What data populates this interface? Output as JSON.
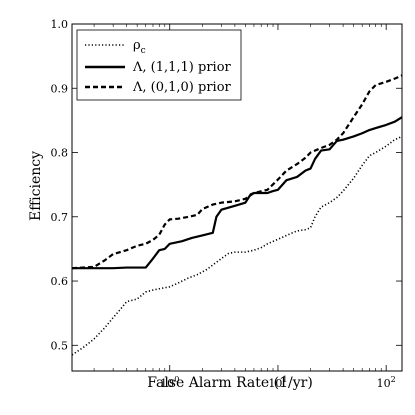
{
  "chart_data": {
    "type": "line",
    "xlabel": "False Alarm Rate (1/yr)",
    "ylabel": "Efficiency",
    "xscale": "log",
    "xlim": [
      0.125,
      140
    ],
    "ylim": [
      0.46,
      1.0
    ],
    "x_ticks": [
      {
        "value": 1,
        "base": "10",
        "exp": "0"
      },
      {
        "value": 10,
        "base": "10",
        "exp": "1"
      },
      {
        "value": 100,
        "base": "10",
        "exp": "2"
      }
    ],
    "y_ticks": [
      {
        "value": 0.5,
        "label": "0.5"
      },
      {
        "value": 0.6,
        "label": "0.6"
      },
      {
        "value": 0.7,
        "label": "0.7"
      },
      {
        "value": 0.8,
        "label": "0.8"
      },
      {
        "value": 0.9,
        "label": "0.9"
      },
      {
        "value": 1.0,
        "label": "1.0"
      }
    ],
    "grid": false,
    "legend_position": "top-left",
    "series": [
      {
        "name": "ρ",
        "name_sub": "c",
        "style": "dotted",
        "color": "#000000",
        "x": [
          0.125,
          0.16,
          0.2,
          0.25,
          0.3,
          0.35,
          0.4,
          0.5,
          0.6,
          0.7,
          0.8,
          1.0,
          1.2,
          1.5,
          1.8,
          2.2,
          2.5,
          3.0,
          3.5,
          4.0,
          5.0,
          6.0,
          7.0,
          8.0,
          10.0,
          12.0,
          15.0,
          18.0,
          20.0,
          22.0,
          25.0,
          30.0,
          35.0,
          40.0,
          50.0,
          60.0,
          70.0,
          80.0,
          100.0,
          120.0,
          140.0
        ],
        "y": [
          0.485,
          0.497,
          0.51,
          0.527,
          0.543,
          0.556,
          0.568,
          0.572,
          0.583,
          0.586,
          0.588,
          0.591,
          0.597,
          0.605,
          0.61,
          0.618,
          0.625,
          0.635,
          0.643,
          0.645,
          0.645,
          0.648,
          0.652,
          0.658,
          0.665,
          0.671,
          0.678,
          0.68,
          0.683,
          0.7,
          0.715,
          0.722,
          0.73,
          0.74,
          0.76,
          0.78,
          0.795,
          0.8,
          0.81,
          0.82,
          0.825
        ]
      },
      {
        "name": "Λ, (1,1,1) prior",
        "style": "solid",
        "color": "#000000",
        "x": [
          0.125,
          0.2,
          0.3,
          0.4,
          0.6,
          0.7,
          0.8,
          0.9,
          1.0,
          1.3,
          1.6,
          2.0,
          2.5,
          2.7,
          3.0,
          4.0,
          5.0,
          5.6,
          6.0,
          8.0,
          9.0,
          10.0,
          12.0,
          15.0,
          18.0,
          20.0,
          22.0,
          25.0,
          30.0,
          35.0,
          40.0,
          50.0,
          60.0,
          70.0,
          80.0,
          100.0,
          120.0,
          140.0
        ],
        "y": [
          0.62,
          0.62,
          0.62,
          0.621,
          0.621,
          0.635,
          0.648,
          0.65,
          0.658,
          0.662,
          0.667,
          0.671,
          0.675,
          0.7,
          0.711,
          0.717,
          0.722,
          0.735,
          0.737,
          0.737,
          0.74,
          0.742,
          0.757,
          0.762,
          0.772,
          0.775,
          0.79,
          0.803,
          0.805,
          0.818,
          0.82,
          0.825,
          0.83,
          0.835,
          0.838,
          0.843,
          0.848,
          0.855
        ]
      },
      {
        "name": "Λ, (0,1,0) prior",
        "style": "dashed",
        "color": "#000000",
        "x": [
          0.125,
          0.2,
          0.25,
          0.3,
          0.4,
          0.5,
          0.6,
          0.7,
          0.8,
          0.9,
          1.0,
          1.2,
          1.5,
          1.8,
          2.0,
          2.5,
          3.0,
          4.0,
          5.0,
          6.0,
          8.0,
          10.0,
          12.0,
          15.0,
          18.0,
          20.0,
          25.0,
          30.0,
          35.0,
          40.0,
          50.0,
          60.0,
          70.0,
          80.0,
          100.0,
          120.0,
          140.0
        ],
        "y": [
          0.62,
          0.622,
          0.632,
          0.642,
          0.648,
          0.655,
          0.658,
          0.664,
          0.672,
          0.688,
          0.696,
          0.697,
          0.7,
          0.703,
          0.712,
          0.719,
          0.722,
          0.724,
          0.728,
          0.737,
          0.742,
          0.758,
          0.772,
          0.782,
          0.792,
          0.8,
          0.807,
          0.812,
          0.82,
          0.83,
          0.855,
          0.875,
          0.895,
          0.905,
          0.91,
          0.915,
          0.92
        ]
      }
    ]
  }
}
